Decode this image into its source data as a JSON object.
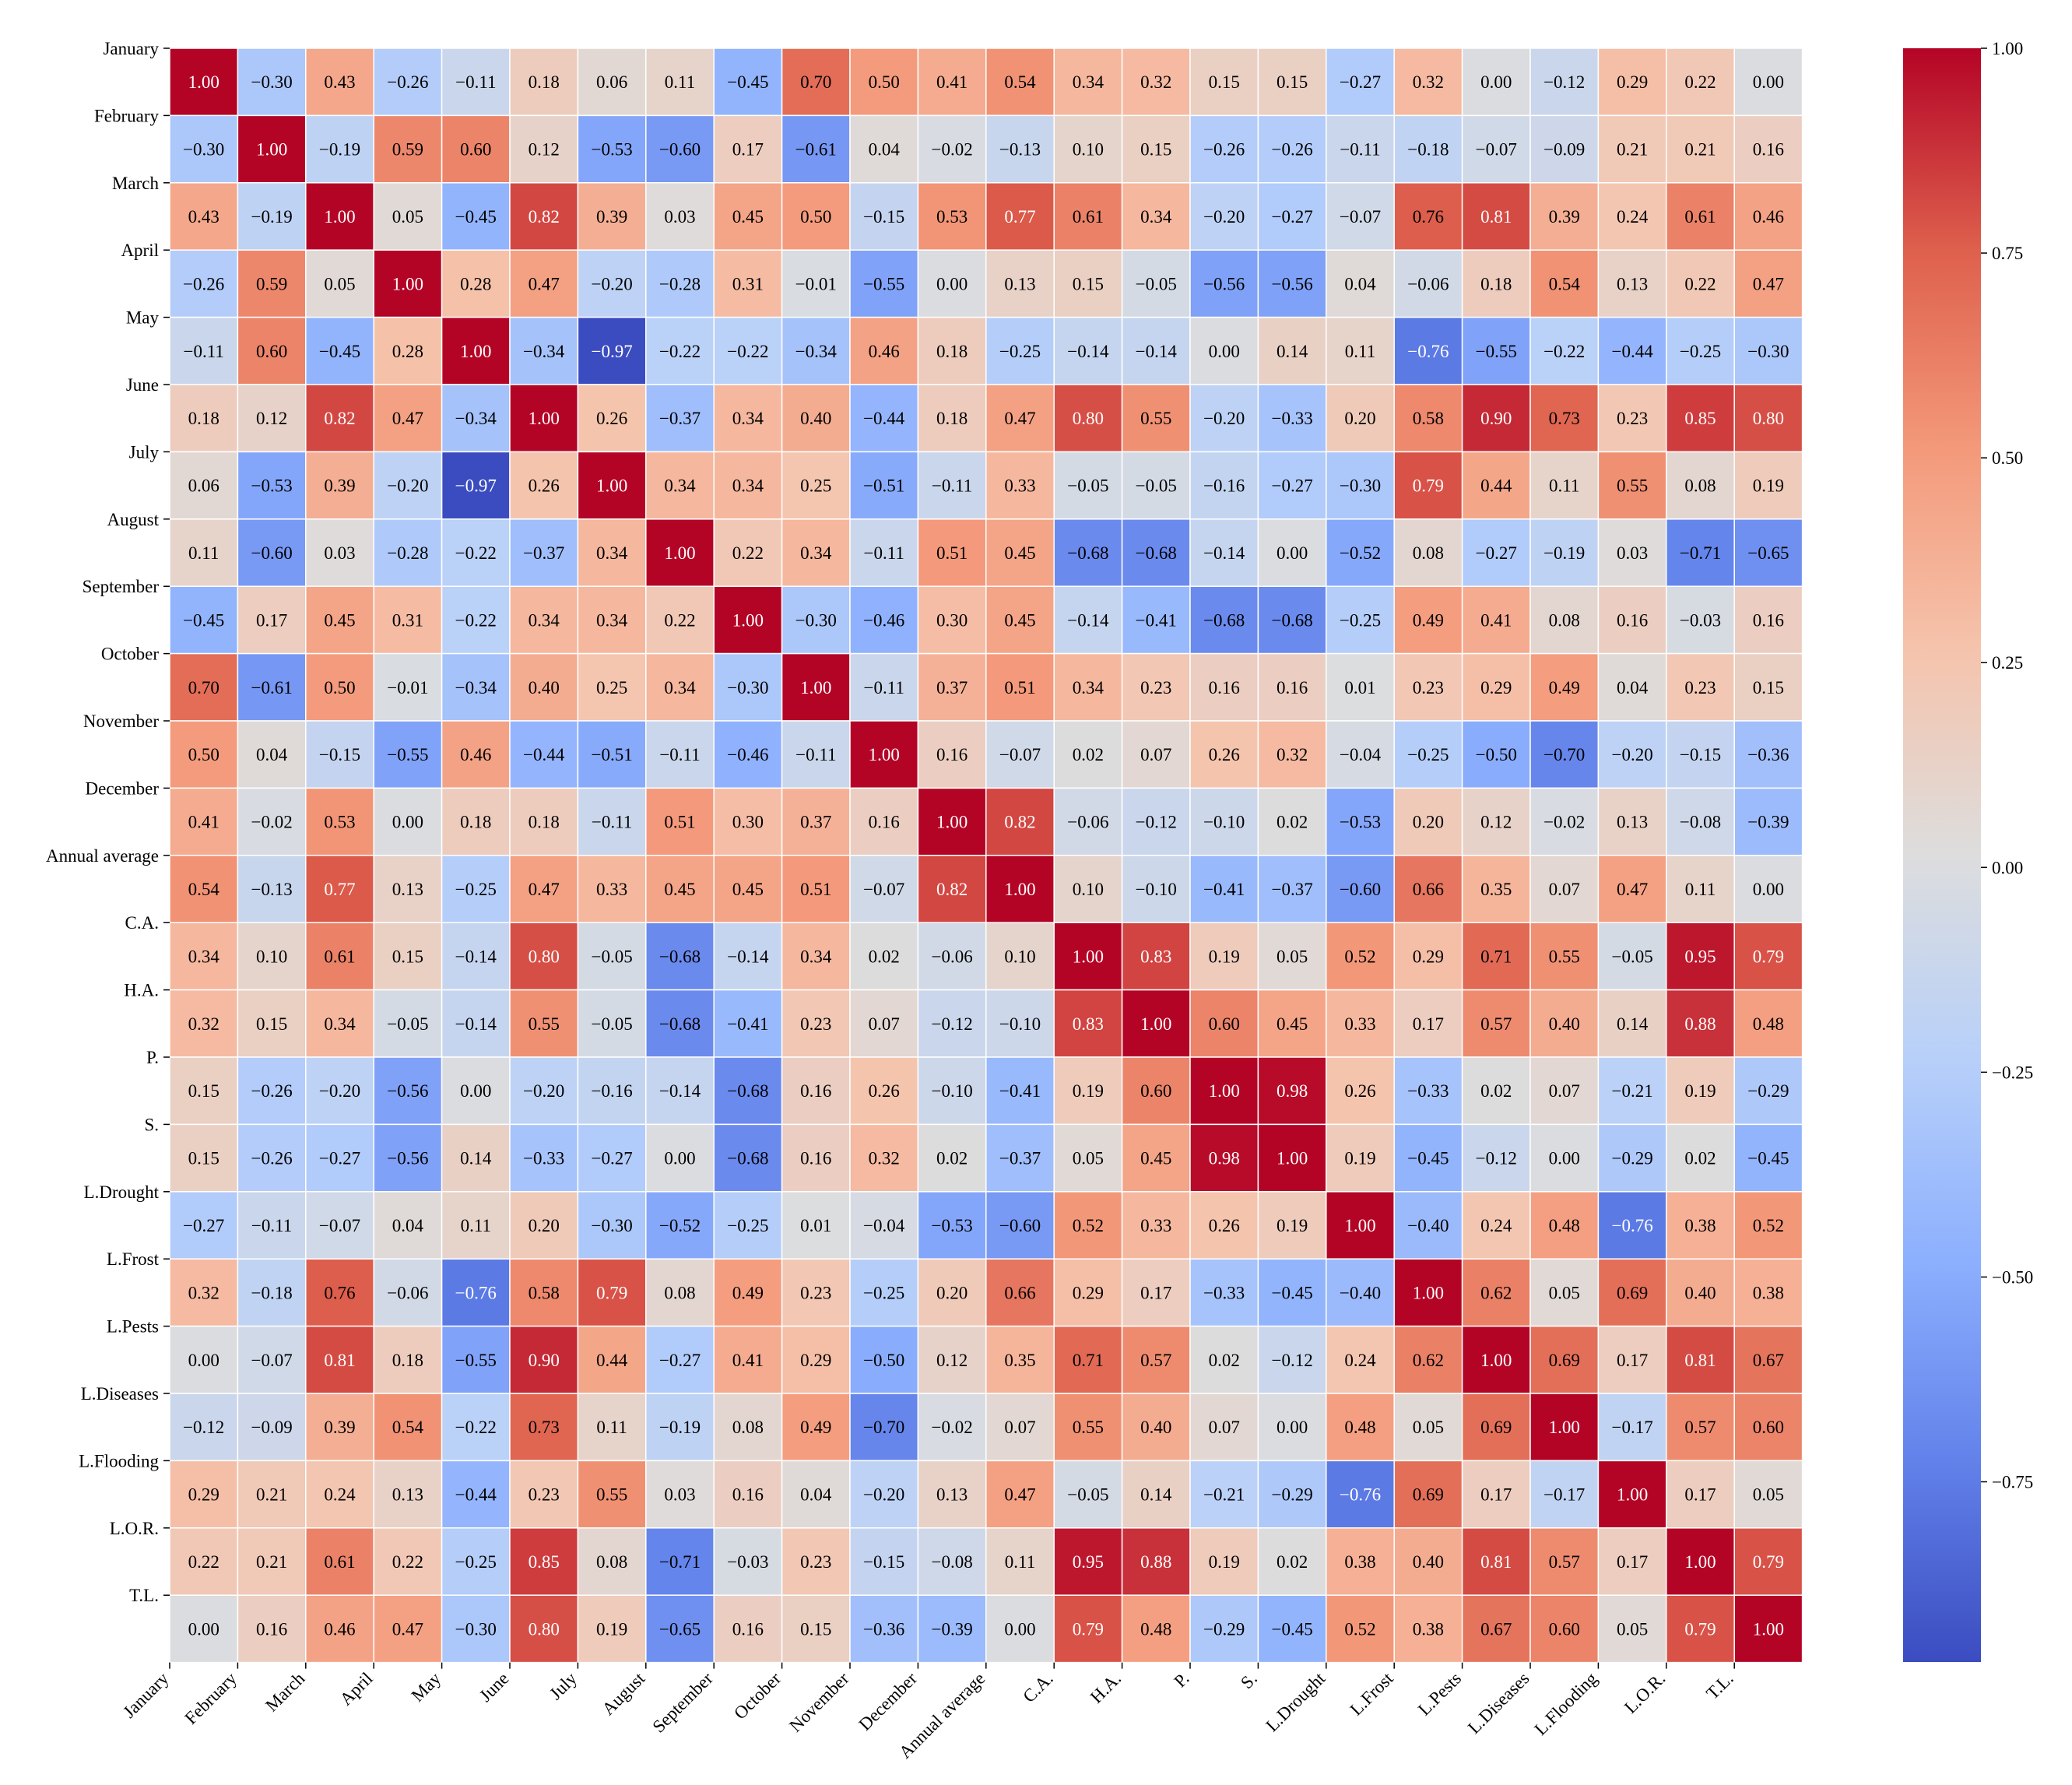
{
  "chart_data": {
    "type": "heatmap",
    "title": "",
    "xlabel": "",
    "ylabel": "",
    "colormap": "coolwarm",
    "value_range": [
      -0.97,
      1.0
    ],
    "labels": [
      "January",
      "February",
      "March",
      "April",
      "May",
      "June",
      "July",
      "August",
      "September",
      "October",
      "November",
      "December",
      "Annual average",
      "C.A.",
      "H.A.",
      "P.",
      "S.",
      "L.Drought",
      "L.Frost",
      "L.Pests",
      "L.Diseases",
      "L.Flooding",
      "L.O.R.",
      "T.L."
    ],
    "matrix": [
      [
        1.0,
        -0.3,
        0.43,
        -0.26,
        -0.11,
        0.18,
        0.06,
        0.11,
        -0.45,
        0.7,
        0.5,
        0.41,
        0.54,
        0.34,
        0.32,
        0.15,
        0.15,
        -0.27,
        0.32,
        0.0,
        -0.12,
        0.29,
        0.22,
        0.0
      ],
      [
        -0.3,
        1.0,
        -0.19,
        0.59,
        0.6,
        0.12,
        -0.53,
        -0.6,
        0.17,
        -0.61,
        0.04,
        -0.02,
        -0.13,
        0.1,
        0.15,
        -0.26,
        -0.26,
        -0.11,
        -0.18,
        -0.07,
        -0.09,
        0.21,
        0.21,
        0.16
      ],
      [
        0.43,
        -0.19,
        1.0,
        0.05,
        -0.45,
        0.82,
        0.39,
        0.03,
        0.45,
        0.5,
        -0.15,
        0.53,
        0.77,
        0.61,
        0.34,
        -0.2,
        -0.27,
        -0.07,
        0.76,
        0.81,
        0.39,
        0.24,
        0.61,
        0.46
      ],
      [
        -0.26,
        0.59,
        0.05,
        1.0,
        0.28,
        0.47,
        -0.2,
        -0.28,
        0.31,
        -0.01,
        -0.55,
        0.0,
        0.13,
        0.15,
        -0.05,
        -0.56,
        -0.56,
        0.04,
        -0.06,
        0.18,
        0.54,
        0.13,
        0.22,
        0.47
      ],
      [
        -0.11,
        0.6,
        -0.45,
        0.28,
        1.0,
        -0.34,
        -0.97,
        -0.22,
        -0.22,
        -0.34,
        0.46,
        0.18,
        -0.25,
        -0.14,
        -0.14,
        0.0,
        0.14,
        0.11,
        -0.76,
        -0.55,
        -0.22,
        -0.44,
        -0.25,
        -0.3
      ],
      [
        0.18,
        0.12,
        0.82,
        0.47,
        -0.34,
        1.0,
        0.26,
        -0.37,
        0.34,
        0.4,
        -0.44,
        0.18,
        0.47,
        0.8,
        0.55,
        -0.2,
        -0.33,
        0.2,
        0.58,
        0.9,
        0.73,
        0.23,
        0.85,
        0.8
      ],
      [
        0.06,
        -0.53,
        0.39,
        -0.2,
        -0.97,
        0.26,
        1.0,
        0.34,
        0.34,
        0.25,
        -0.51,
        -0.11,
        0.33,
        -0.05,
        -0.05,
        -0.16,
        -0.27,
        -0.3,
        0.79,
        0.44,
        0.11,
        0.55,
        0.08,
        0.19
      ],
      [
        0.11,
        -0.6,
        0.03,
        -0.28,
        -0.22,
        -0.37,
        0.34,
        1.0,
        0.22,
        0.34,
        -0.11,
        0.51,
        0.45,
        -0.68,
        -0.68,
        -0.14,
        0.0,
        -0.52,
        0.08,
        -0.27,
        -0.19,
        0.03,
        -0.71,
        -0.65
      ],
      [
        -0.45,
        0.17,
        0.45,
        0.31,
        -0.22,
        0.34,
        0.34,
        0.22,
        1.0,
        -0.3,
        -0.46,
        0.3,
        0.45,
        -0.14,
        -0.41,
        -0.68,
        -0.68,
        -0.25,
        0.49,
        0.41,
        0.08,
        0.16,
        -0.03,
        0.16
      ],
      [
        0.7,
        -0.61,
        0.5,
        -0.01,
        -0.34,
        0.4,
        0.25,
        0.34,
        -0.3,
        1.0,
        -0.11,
        0.37,
        0.51,
        0.34,
        0.23,
        0.16,
        0.16,
        0.01,
        0.23,
        0.29,
        0.49,
        0.04,
        0.23,
        0.15
      ],
      [
        0.5,
        0.04,
        -0.15,
        -0.55,
        0.46,
        -0.44,
        -0.51,
        -0.11,
        -0.46,
        -0.11,
        1.0,
        0.16,
        -0.07,
        0.02,
        0.07,
        0.26,
        0.32,
        -0.04,
        -0.25,
        -0.5,
        -0.7,
        -0.2,
        -0.15,
        -0.36
      ],
      [
        0.41,
        -0.02,
        0.53,
        0.0,
        0.18,
        0.18,
        -0.11,
        0.51,
        0.3,
        0.37,
        0.16,
        1.0,
        0.82,
        -0.06,
        -0.12,
        -0.1,
        0.02,
        -0.53,
        0.2,
        0.12,
        -0.02,
        0.13,
        -0.08,
        -0.39
      ],
      [
        0.54,
        -0.13,
        0.77,
        0.13,
        -0.25,
        0.47,
        0.33,
        0.45,
        0.45,
        0.51,
        -0.07,
        0.82,
        1.0,
        0.1,
        -0.1,
        -0.41,
        -0.37,
        -0.6,
        0.66,
        0.35,
        0.07,
        0.47,
        0.11,
        0.0
      ],
      [
        0.34,
        0.1,
        0.61,
        0.15,
        -0.14,
        0.8,
        -0.05,
        -0.68,
        -0.14,
        0.34,
        0.02,
        -0.06,
        0.1,
        1.0,
        0.83,
        0.19,
        0.05,
        0.52,
        0.29,
        0.71,
        0.55,
        -0.05,
        0.95,
        0.79
      ],
      [
        0.32,
        0.15,
        0.34,
        -0.05,
        -0.14,
        0.55,
        -0.05,
        -0.68,
        -0.41,
        0.23,
        0.07,
        -0.12,
        -0.1,
        0.83,
        1.0,
        0.6,
        0.45,
        0.33,
        0.17,
        0.57,
        0.4,
        0.14,
        0.88,
        0.48
      ],
      [
        0.15,
        -0.26,
        -0.2,
        -0.56,
        0.0,
        -0.2,
        -0.16,
        -0.14,
        -0.68,
        0.16,
        0.26,
        -0.1,
        -0.41,
        0.19,
        0.6,
        1.0,
        0.98,
        0.26,
        -0.33,
        0.02,
        0.07,
        -0.21,
        0.19,
        -0.29
      ],
      [
        0.15,
        -0.26,
        -0.27,
        -0.56,
        0.14,
        -0.33,
        -0.27,
        0.0,
        -0.68,
        0.16,
        0.32,
        0.02,
        -0.37,
        0.05,
        0.45,
        0.98,
        1.0,
        0.19,
        -0.45,
        -0.12,
        0.0,
        -0.29,
        0.02,
        -0.45
      ],
      [
        -0.27,
        -0.11,
        -0.07,
        0.04,
        0.11,
        0.2,
        -0.3,
        -0.52,
        -0.25,
        0.01,
        -0.04,
        -0.53,
        -0.6,
        0.52,
        0.33,
        0.26,
        0.19,
        1.0,
        -0.4,
        0.24,
        0.48,
        -0.76,
        0.38,
        0.52
      ],
      [
        0.32,
        -0.18,
        0.76,
        -0.06,
        -0.76,
        0.58,
        0.79,
        0.08,
        0.49,
        0.23,
        -0.25,
        0.2,
        0.66,
        0.29,
        0.17,
        -0.33,
        -0.45,
        -0.4,
        1.0,
        0.62,
        0.05,
        0.69,
        0.4,
        0.38
      ],
      [
        0.0,
        -0.07,
        0.81,
        0.18,
        -0.55,
        0.9,
        0.44,
        -0.27,
        0.41,
        0.29,
        -0.5,
        0.12,
        0.35,
        0.71,
        0.57,
        0.02,
        -0.12,
        0.24,
        0.62,
        1.0,
        0.69,
        0.17,
        0.81,
        0.67
      ],
      [
        -0.12,
        -0.09,
        0.39,
        0.54,
        -0.22,
        0.73,
        0.11,
        -0.19,
        0.08,
        0.49,
        -0.7,
        -0.02,
        0.07,
        0.55,
        0.4,
        0.07,
        0.0,
        0.48,
        0.05,
        0.69,
        1.0,
        -0.17,
        0.57,
        0.6
      ],
      [
        0.29,
        0.21,
        0.24,
        0.13,
        -0.44,
        0.23,
        0.55,
        0.03,
        0.16,
        0.04,
        -0.2,
        0.13,
        0.47,
        -0.05,
        0.14,
        -0.21,
        -0.29,
        -0.76,
        0.69,
        0.17,
        -0.17,
        1.0,
        0.17,
        0.05
      ],
      [
        0.22,
        0.21,
        0.61,
        0.22,
        -0.25,
        0.85,
        0.08,
        -0.71,
        -0.03,
        0.23,
        -0.15,
        -0.08,
        0.11,
        0.95,
        0.88,
        0.19,
        0.02,
        0.38,
        0.4,
        0.81,
        0.57,
        0.17,
        1.0,
        0.79
      ],
      [
        0.0,
        0.16,
        0.46,
        0.47,
        -0.3,
        0.8,
        0.19,
        -0.65,
        0.16,
        0.15,
        -0.36,
        -0.39,
        0.0,
        0.79,
        0.48,
        -0.29,
        -0.45,
        0.52,
        0.38,
        0.67,
        0.6,
        0.05,
        0.79,
        1.0
      ]
    ],
    "colorbar": {
      "ticks": [
        1.0,
        0.75,
        0.5,
        0.25,
        0.0,
        -0.25,
        -0.5,
        -0.75
      ],
      "tick_labels": [
        "1.00",
        "0.75",
        "0.50",
        "0.25",
        "0.00",
        "−0.25",
        "−0.50",
        "−0.75"
      ]
    }
  }
}
